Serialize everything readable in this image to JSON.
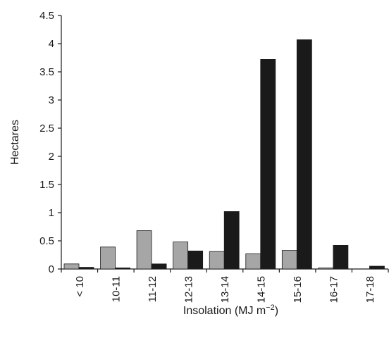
{
  "chart_data": {
    "type": "bar",
    "title": "",
    "xlabel": "Insolation (MJ m",
    "xlabel_superscript": "−2",
    "xlabel_suffix": ")",
    "ylabel": "Hectares",
    "ylim": [
      0,
      4.5
    ],
    "yticks": [
      "0",
      "0.5",
      "1",
      "1.5",
      "2",
      "2.5",
      "3",
      "3.5",
      "4",
      "4.5"
    ],
    "categories": [
      "< 10",
      "10-11",
      "11-12",
      "12-13",
      "13-14",
      "14-15",
      "15-16",
      "16-17",
      "17-18"
    ],
    "series": [
      {
        "values": [
          0.09,
          0.39,
          0.68,
          0.48,
          0.31,
          0.27,
          0.33,
          0.02,
          0.0
        ],
        "color": "#a6a6a6"
      },
      {
        "values": [
          0.03,
          0.02,
          0.09,
          0.32,
          1.02,
          3.72,
          4.07,
          0.42,
          0.05
        ],
        "color": "#1a1a1a"
      }
    ],
    "grid": false,
    "legend": "none"
  }
}
